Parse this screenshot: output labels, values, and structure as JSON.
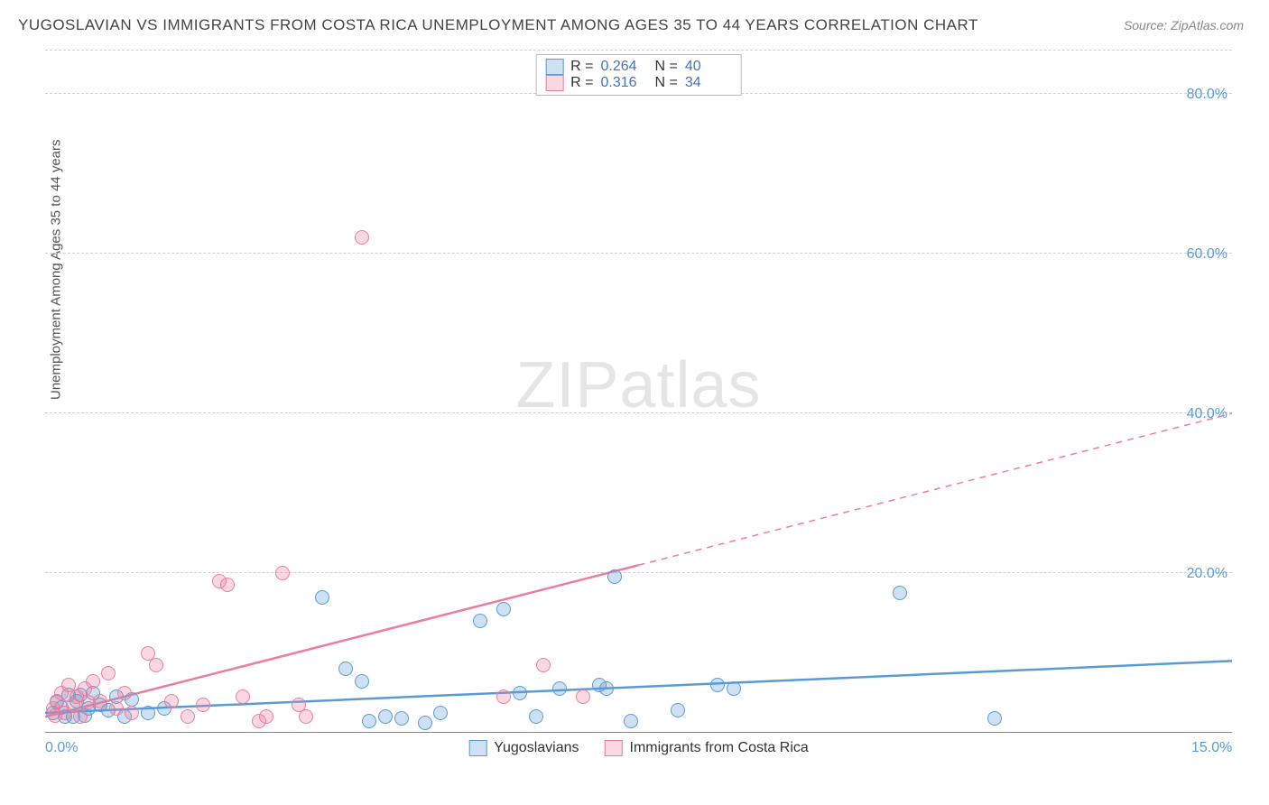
{
  "title": "YUGOSLAVIAN VS IMMIGRANTS FROM COSTA RICA UNEMPLOYMENT AMONG AGES 35 TO 44 YEARS CORRELATION CHART",
  "source": "Source: ZipAtlas.com",
  "ylabel": "Unemployment Among Ages 35 to 44 years",
  "watermark_a": "ZIP",
  "watermark_b": "atlas",
  "chart": {
    "type": "scatter",
    "xlim": [
      0,
      15
    ],
    "ylim": [
      0,
      85
    ],
    "x_ticks": [
      0,
      15
    ],
    "x_tick_labels": [
      "0.0%",
      "15.0%"
    ],
    "y_ticks": [
      20,
      40,
      60,
      80
    ],
    "y_tick_labels": [
      "20.0%",
      "40.0%",
      "60.0%",
      "80.0%"
    ],
    "grid_color": "#d0d0d0",
    "baseline_color": "#888888",
    "background_color": "#ffffff",
    "marker_radius": 8,
    "marker_border_width": 1.2,
    "trend_solid_width": 2.5,
    "trend_dash_width": 1.5,
    "series": [
      {
        "name": "Yugoslavians",
        "color_fill": "rgba(91,155,213,0.30)",
        "color_stroke": "#5B9BD5",
        "R": "0.264",
        "N": "40",
        "trend": {
          "x1": 0,
          "y1": 2.5,
          "x2": 15,
          "y2": 9.0,
          "x_solid_max": 15
        },
        "points": [
          [
            0.1,
            2.5
          ],
          [
            0.2,
            3.2
          ],
          [
            0.3,
            4.8
          ],
          [
            0.35,
            2.0
          ],
          [
            0.4,
            4.0
          ],
          [
            0.5,
            2.2
          ],
          [
            0.55,
            3.0
          ],
          [
            0.6,
            5.0
          ],
          [
            0.7,
            3.5
          ],
          [
            0.8,
            2.8
          ],
          [
            0.9,
            4.5
          ],
          [
            1.0,
            2.0
          ],
          [
            1.1,
            4.2
          ],
          [
            1.3,
            2.5
          ],
          [
            1.5,
            3.0
          ],
          [
            3.5,
            17.0
          ],
          [
            3.8,
            8.0
          ],
          [
            4.0,
            6.5
          ],
          [
            4.1,
            1.5
          ],
          [
            4.3,
            2.0
          ],
          [
            4.5,
            1.8
          ],
          [
            4.8,
            1.2
          ],
          [
            5.0,
            2.5
          ],
          [
            5.5,
            14.0
          ],
          [
            5.8,
            15.5
          ],
          [
            6.0,
            5.0
          ],
          [
            6.2,
            2.0
          ],
          [
            6.5,
            5.5
          ],
          [
            7.0,
            6.0
          ],
          [
            7.1,
            5.5
          ],
          [
            7.2,
            19.5
          ],
          [
            7.4,
            1.5
          ],
          [
            8.0,
            2.8
          ],
          [
            8.5,
            6.0
          ],
          [
            8.7,
            5.5
          ],
          [
            10.8,
            17.5
          ],
          [
            12.0,
            1.8
          ],
          [
            0.15,
            3.8
          ],
          [
            0.25,
            2.0
          ],
          [
            0.45,
            4.8
          ]
        ]
      },
      {
        "name": "Immigrants from Costa Rica",
        "color_fill": "rgba(237,125,157,0.30)",
        "color_stroke": "#ED7D9D",
        "R": "0.316",
        "N": "34",
        "trend": {
          "x1": 0,
          "y1": 2.0,
          "x2": 15,
          "y2": 40.0,
          "x_solid_max": 7.5
        },
        "points": [
          [
            0.1,
            3.0
          ],
          [
            0.15,
            4.0
          ],
          [
            0.2,
            5.0
          ],
          [
            0.25,
            2.5
          ],
          [
            0.3,
            6.0
          ],
          [
            0.35,
            3.5
          ],
          [
            0.4,
            4.5
          ],
          [
            0.45,
            2.0
          ],
          [
            0.5,
            5.5
          ],
          [
            0.55,
            3.8
          ],
          [
            0.6,
            6.5
          ],
          [
            0.7,
            4.0
          ],
          [
            0.8,
            7.5
          ],
          [
            0.9,
            3.0
          ],
          [
            1.0,
            5.0
          ],
          [
            1.1,
            2.5
          ],
          [
            1.3,
            10.0
          ],
          [
            1.4,
            8.5
          ],
          [
            1.6,
            4.0
          ],
          [
            1.8,
            2.0
          ],
          [
            2.0,
            3.5
          ],
          [
            2.2,
            19.0
          ],
          [
            2.3,
            18.5
          ],
          [
            2.5,
            4.5
          ],
          [
            2.7,
            1.5
          ],
          [
            2.8,
            2.0
          ],
          [
            3.0,
            20.0
          ],
          [
            3.2,
            3.5
          ],
          [
            3.3,
            2.0
          ],
          [
            4.0,
            62.0
          ],
          [
            5.8,
            4.5
          ],
          [
            6.3,
            8.5
          ],
          [
            6.8,
            4.5
          ],
          [
            0.12,
            2.2
          ]
        ]
      }
    ]
  },
  "legend_top": {
    "r_label": "R =",
    "n_label": "N ="
  },
  "legend_bottom_labels": [
    "Yugoslavians",
    "Immigrants from Costa Rica"
  ]
}
